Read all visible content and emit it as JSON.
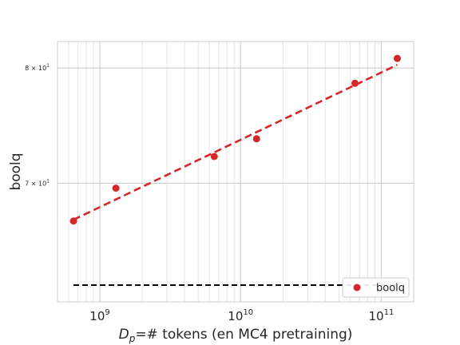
{
  "chart_data": {
    "type": "scatter",
    "title": "",
    "xlabel_main": "D",
    "xlabel_sub": "p",
    "xlabel_rest": "=# tokens (en MC4 pretraining)",
    "ylabel": "boolq",
    "xscale": "log",
    "yscale": "log",
    "xlim": [
      500000000,
      170000000000
    ],
    "ylim": [
      61.0,
      82.5
    ],
    "grid": true,
    "legend_position": "bottom-right",
    "x_ticks": [
      {
        "value": 1000000000,
        "base": "10",
        "exp": "9"
      },
      {
        "value": 10000000000,
        "base": "10",
        "exp": "10"
      },
      {
        "value": 100000000000,
        "base": "10",
        "exp": "11"
      }
    ],
    "y_ticks": [
      {
        "value": 70,
        "label": "7 × 10",
        "exp": "1"
      },
      {
        "value": 80,
        "label": "8 × 10",
        "exp": "1"
      }
    ],
    "series": [
      {
        "name": "boolq",
        "kind": "points",
        "color": "#d62728",
        "x": [
          650000000,
          1300000000,
          6500000000,
          13000000000,
          65000000000,
          130000000000
        ],
        "y": [
          67.0,
          69.6,
          72.2,
          73.7,
          78.6,
          80.9
        ]
      },
      {
        "kind": "fit-line",
        "color": "#d62728",
        "x": [
          650000000,
          130000000000
        ],
        "y": [
          67.1,
          80.3
        ]
      },
      {
        "kind": "baseline",
        "color": "#000000",
        "x": [
          650000000,
          130000000000
        ],
        "y": [
          62.2,
          62.2
        ]
      }
    ]
  }
}
